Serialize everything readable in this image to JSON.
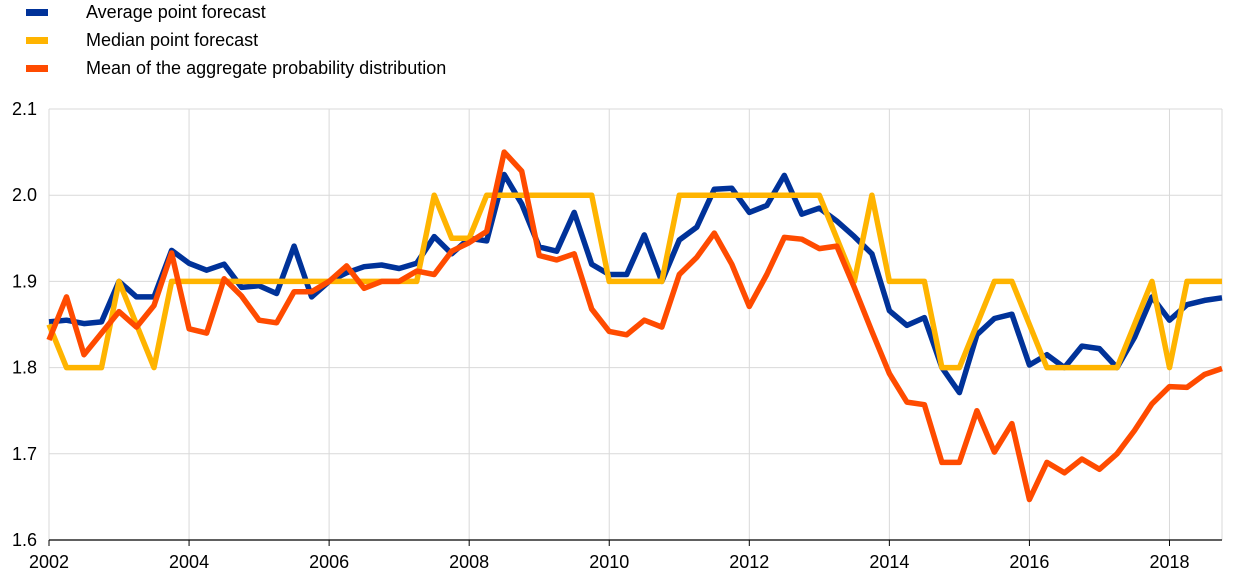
{
  "chart_data": {
    "type": "line",
    "title": "",
    "xlabel": "",
    "ylabel": "",
    "xlim": [
      2002,
      2018.75
    ],
    "ylim": [
      1.6,
      2.1
    ],
    "x_ticks": [
      "2002",
      "2004",
      "2006",
      "2008",
      "2010",
      "2012",
      "2014",
      "2016",
      "2018"
    ],
    "y_ticks": [
      "1.6",
      "1.7",
      "1.8",
      "1.9",
      "2.0",
      "2.1"
    ],
    "grid": "horizontal",
    "legend_position": "top-left",
    "x": [
      2002.0,
      2002.25,
      2002.5,
      2002.75,
      2003.0,
      2003.25,
      2003.5,
      2003.75,
      2004.0,
      2004.25,
      2004.5,
      2004.75,
      2005.0,
      2005.25,
      2005.5,
      2005.75,
      2006.0,
      2006.25,
      2006.5,
      2006.75,
      2007.0,
      2007.25,
      2007.5,
      2007.75,
      2008.0,
      2008.25,
      2008.5,
      2008.75,
      2009.0,
      2009.25,
      2009.5,
      2009.75,
      2010.0,
      2010.25,
      2010.5,
      2010.75,
      2011.0,
      2011.25,
      2011.5,
      2011.75,
      2012.0,
      2012.25,
      2012.5,
      2012.75,
      2013.0,
      2013.25,
      2013.5,
      2013.75,
      2014.0,
      2014.25,
      2014.5,
      2014.75,
      2015.0,
      2015.25,
      2015.5,
      2015.75,
      2016.0,
      2016.25,
      2016.5,
      2016.75,
      2017.0,
      2017.25,
      2017.5,
      2017.75,
      2018.0,
      2018.25,
      2018.5,
      2018.75
    ],
    "series": [
      {
        "name": "Average point forecast",
        "color": "#003299",
        "values": [
          1.853,
          1.855,
          1.851,
          1.853,
          1.9,
          1.882,
          1.882,
          1.936,
          1.921,
          1.913,
          1.92,
          1.893,
          1.895,
          1.886,
          1.941,
          1.882,
          1.9,
          1.91,
          1.917,
          1.919,
          1.915,
          1.921,
          1.952,
          1.932,
          1.95,
          1.947,
          2.024,
          1.99,
          1.94,
          1.935,
          1.98,
          1.92,
          1.908,
          1.908,
          1.954,
          1.9,
          1.948,
          1.963,
          2.007,
          2.008,
          1.98,
          1.988,
          2.023,
          1.978,
          1.985,
          1.97,
          1.952,
          1.932,
          1.866,
          1.849,
          1.858,
          1.8,
          1.771,
          1.838,
          1.857,
          1.862,
          1.803,
          1.815,
          1.8,
          1.825,
          1.822,
          1.8,
          1.835,
          1.882,
          1.855,
          1.873,
          1.878,
          1.881
        ]
      },
      {
        "name": "Median point forecast",
        "color": "#FFB400",
        "values": [
          1.85,
          1.8,
          1.8,
          1.8,
          1.9,
          1.85,
          1.8,
          1.9,
          1.9,
          1.9,
          1.9,
          1.9,
          1.9,
          1.9,
          1.9,
          1.9,
          1.9,
          1.9,
          1.9,
          1.9,
          1.9,
          1.9,
          2.0,
          1.95,
          1.95,
          2.0,
          2.0,
          2.0,
          2.0,
          2.0,
          2.0,
          2.0,
          1.9,
          1.9,
          1.9,
          1.9,
          2.0,
          2.0,
          2.0,
          2.0,
          2.0,
          2.0,
          2.0,
          2.0,
          2.0,
          1.95,
          1.9,
          2.0,
          1.9,
          1.9,
          1.9,
          1.8,
          1.8,
          1.85,
          1.9,
          1.9,
          1.85,
          1.8,
          1.8,
          1.8,
          1.8,
          1.8,
          1.85,
          1.9,
          1.8,
          1.9,
          1.9,
          1.9
        ]
      },
      {
        "name": "Mean of the aggregate probability distribution",
        "color": "#FF4B00",
        "values": [
          1.832,
          1.882,
          1.815,
          1.84,
          1.865,
          1.847,
          1.872,
          1.933,
          1.845,
          1.84,
          1.903,
          1.883,
          1.855,
          1.852,
          1.888,
          1.888,
          1.9,
          1.918,
          1.892,
          1.9,
          1.9,
          1.912,
          1.908,
          1.935,
          1.945,
          1.958,
          2.05,
          2.028,
          1.93,
          1.925,
          1.932,
          1.868,
          1.842,
          1.838,
          1.855,
          1.847,
          1.908,
          1.928,
          1.956,
          1.92,
          1.871,
          1.908,
          1.951,
          1.949,
          1.938,
          1.941,
          1.893,
          1.842,
          1.793,
          1.76,
          1.757,
          1.69,
          1.69,
          1.75,
          1.702,
          1.735,
          1.647,
          1.69,
          1.678,
          1.694,
          1.682,
          1.7,
          1.727,
          1.758,
          1.778,
          1.777,
          1.792,
          1.799
        ]
      }
    ]
  }
}
